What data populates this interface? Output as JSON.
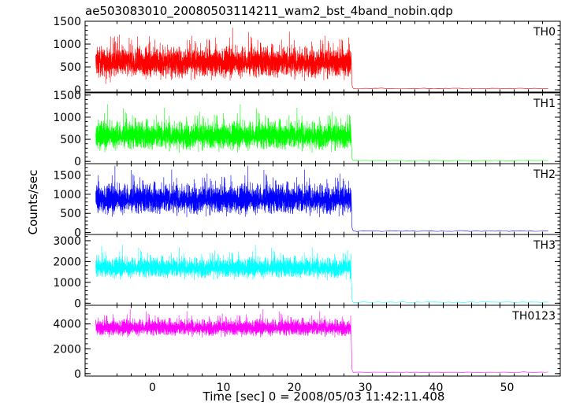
{
  "chart_data": {
    "type": "line",
    "title": "ae503083010_20080503114211_wam2_bst_4band_nobin.qdp",
    "xlabel": "Time [sec] 0 = 2008/05/03 11:42:11.408",
    "ylabel": "Counts/sec",
    "xlim": [
      -9.5,
      57.5
    ],
    "xticks": [
      0,
      10,
      20,
      30,
      40,
      50
    ],
    "burst_interval": [
      -8,
      28
    ],
    "background_end": 56,
    "grid": false,
    "legend": "none",
    "panels": [
      {
        "name": "TH0",
        "color": "#ff0000",
        "ylim": [
          -50,
          1500
        ],
        "yticks": [
          0,
          500,
          1000,
          1500
        ],
        "mean_level": 600,
        "noise_halfwidth": 330,
        "background_level": 30
      },
      {
        "name": "TH1",
        "color": "#00ff00",
        "ylim": [
          -50,
          1550
        ],
        "yticks": [
          0,
          500,
          1000,
          1500
        ],
        "mean_level": 580,
        "noise_halfwidth": 310,
        "background_level": 20
      },
      {
        "name": "TH2",
        "color": "#0000ff",
        "ylim": [
          -50,
          1800
        ],
        "yticks": [
          0,
          500,
          1000,
          1500
        ],
        "mean_level": 870,
        "noise_halfwidth": 380,
        "background_level": 40
      },
      {
        "name": "TH3",
        "color": "#00ffff",
        "ylim": [
          -100,
          3300
        ],
        "yticks": [
          0,
          1000,
          2000,
          3000
        ],
        "mean_level": 1700,
        "noise_halfwidth": 480,
        "background_level": 50
      },
      {
        "name": "TH0123",
        "color": "#ff00ff",
        "ylim": [
          -200,
          5500
        ],
        "yticks": [
          0,
          2000,
          4000
        ],
        "mean_level": 3700,
        "noise_halfwidth": 650,
        "background_level": 100
      }
    ]
  }
}
